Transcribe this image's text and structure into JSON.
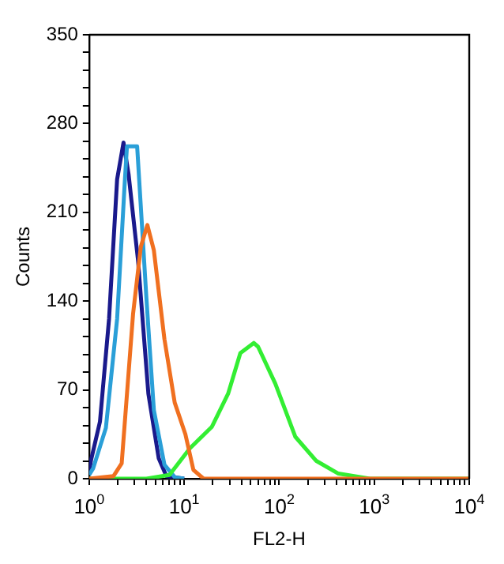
{
  "chart_data": {
    "type": "line",
    "xlabel": "FL2-H",
    "ylabel": "Counts",
    "log": "x",
    "grid": false,
    "legend": false,
    "marker": "none",
    "line_style": "solid",
    "xlim": [
      1,
      10000
    ],
    "xticks": [
      {
        "value": 1,
        "label": "10$^{0}$"
      },
      {
        "value": 2,
        "label": null
      },
      {
        "value": 3,
        "label": null
      },
      {
        "value": 4,
        "label": null
      },
      {
        "value": 5,
        "label": null
      },
      {
        "value": 6,
        "label": null
      },
      {
        "value": 7,
        "label": null
      },
      {
        "value": 8,
        "label": null
      },
      {
        "value": 9,
        "label": null
      },
      {
        "value": 10,
        "label": "10$^{1}$"
      },
      {
        "value": 20,
        "label": null
      },
      {
        "value": 30,
        "label": null
      },
      {
        "value": 40,
        "label": null
      },
      {
        "value": 50,
        "label": null
      },
      {
        "value": 60,
        "label": null
      },
      {
        "value": 70,
        "label": null
      },
      {
        "value": 80,
        "label": null
      },
      {
        "value": 90,
        "label": null
      },
      {
        "value": 100,
        "label": "10$^{2}$"
      },
      {
        "value": 200,
        "label": null
      },
      {
        "value": 300,
        "label": null
      },
      {
        "value": 400,
        "label": null
      },
      {
        "value": 500,
        "label": null
      },
      {
        "value": 600,
        "label": null
      },
      {
        "value": 700,
        "label": null
      },
      {
        "value": 800,
        "label": null
      },
      {
        "value": 900,
        "label": null
      },
      {
        "value": 1000,
        "label": "10$^{3}$"
      },
      {
        "value": 2000,
        "label": null
      },
      {
        "value": 3000,
        "label": null
      },
      {
        "value": 4000,
        "label": null
      },
      {
        "value": 5000,
        "label": null
      },
      {
        "value": 6000,
        "label": null
      },
      {
        "value": 7000,
        "label": null
      },
      {
        "value": 8000,
        "label": null
      },
      {
        "value": 9000,
        "label": null
      },
      {
        "value": 10000,
        "label": "10$^{4}$"
      }
    ],
    "ylim": [
      0,
      350
    ],
    "yticks": [
      0,
      {
        "value": 14,
        "label": null
      },
      {
        "value": 28,
        "label": null
      },
      {
        "value": 42,
        "label": null
      },
      {
        "value": 56,
        "label": null
      },
      70,
      {
        "value": 84,
        "label": null
      },
      {
        "value": 98,
        "label": null
      },
      {
        "value": 112,
        "label": null
      },
      {
        "value": 126,
        "label": null
      },
      140,
      {
        "value": 154,
        "label": null
      },
      {
        "value": 168,
        "label": null
      },
      {
        "value": 182,
        "label": null
      },
      {
        "value": 196,
        "label": null
      },
      210,
      {
        "value": 224,
        "label": null
      },
      {
        "value": 238,
        "label": null
      },
      {
        "value": 252,
        "label": null
      },
      {
        "value": 266,
        "label": null
      },
      280,
      {
        "value": 294,
        "label": null
      },
      {
        "value": 308,
        "label": null
      },
      {
        "value": 322,
        "label": null
      },
      {
        "value": 336,
        "label": null
      },
      350
    ],
    "series": [
      {
        "color": "#f07020",
        "x": [
          1,
          1.8,
          2.2,
          2.9,
          3.5,
          4.1,
          4.8,
          6.2,
          7.95,
          10.3,
          12.5,
          16,
          30,
          10000
        ],
        "values": [
          0,
          2,
          12,
          130,
          183,
          200,
          180,
          110,
          60,
          35,
          7,
          0,
          0,
          0
        ]
      },
      {
        "color": "#33ee33",
        "x": [
          1,
          4,
          7,
          11.5,
          19.6,
          29,
          39,
          54,
          60,
          91,
          148,
          246,
          420,
          900,
          10000
        ],
        "values": [
          0,
          0,
          3,
          24,
          41,
          67,
          99,
          107,
          104,
          75,
          33,
          14,
          4,
          0,
          0
        ]
      },
      {
        "color": "#2a9fd8",
        "x": [
          1,
          1.1,
          1.5,
          1.97,
          2.38,
          2.5,
          3.2,
          4,
          4.8,
          6.2,
          8,
          10
        ],
        "values": [
          3,
          8,
          40,
          126,
          236,
          262,
          262,
          143,
          54,
          11,
          1,
          0
        ]
      },
      {
        "color": "#1a1a8c",
        "x": [
          1,
          1.05,
          1.3,
          1.62,
          1.97,
          2.3,
          2.6,
          3.27,
          4.2,
          5.4,
          6.5,
          10
        ],
        "values": [
          5,
          15,
          45,
          126,
          236,
          265,
          240,
          172,
          67,
          16,
          2,
          0
        ]
      }
    ]
  }
}
